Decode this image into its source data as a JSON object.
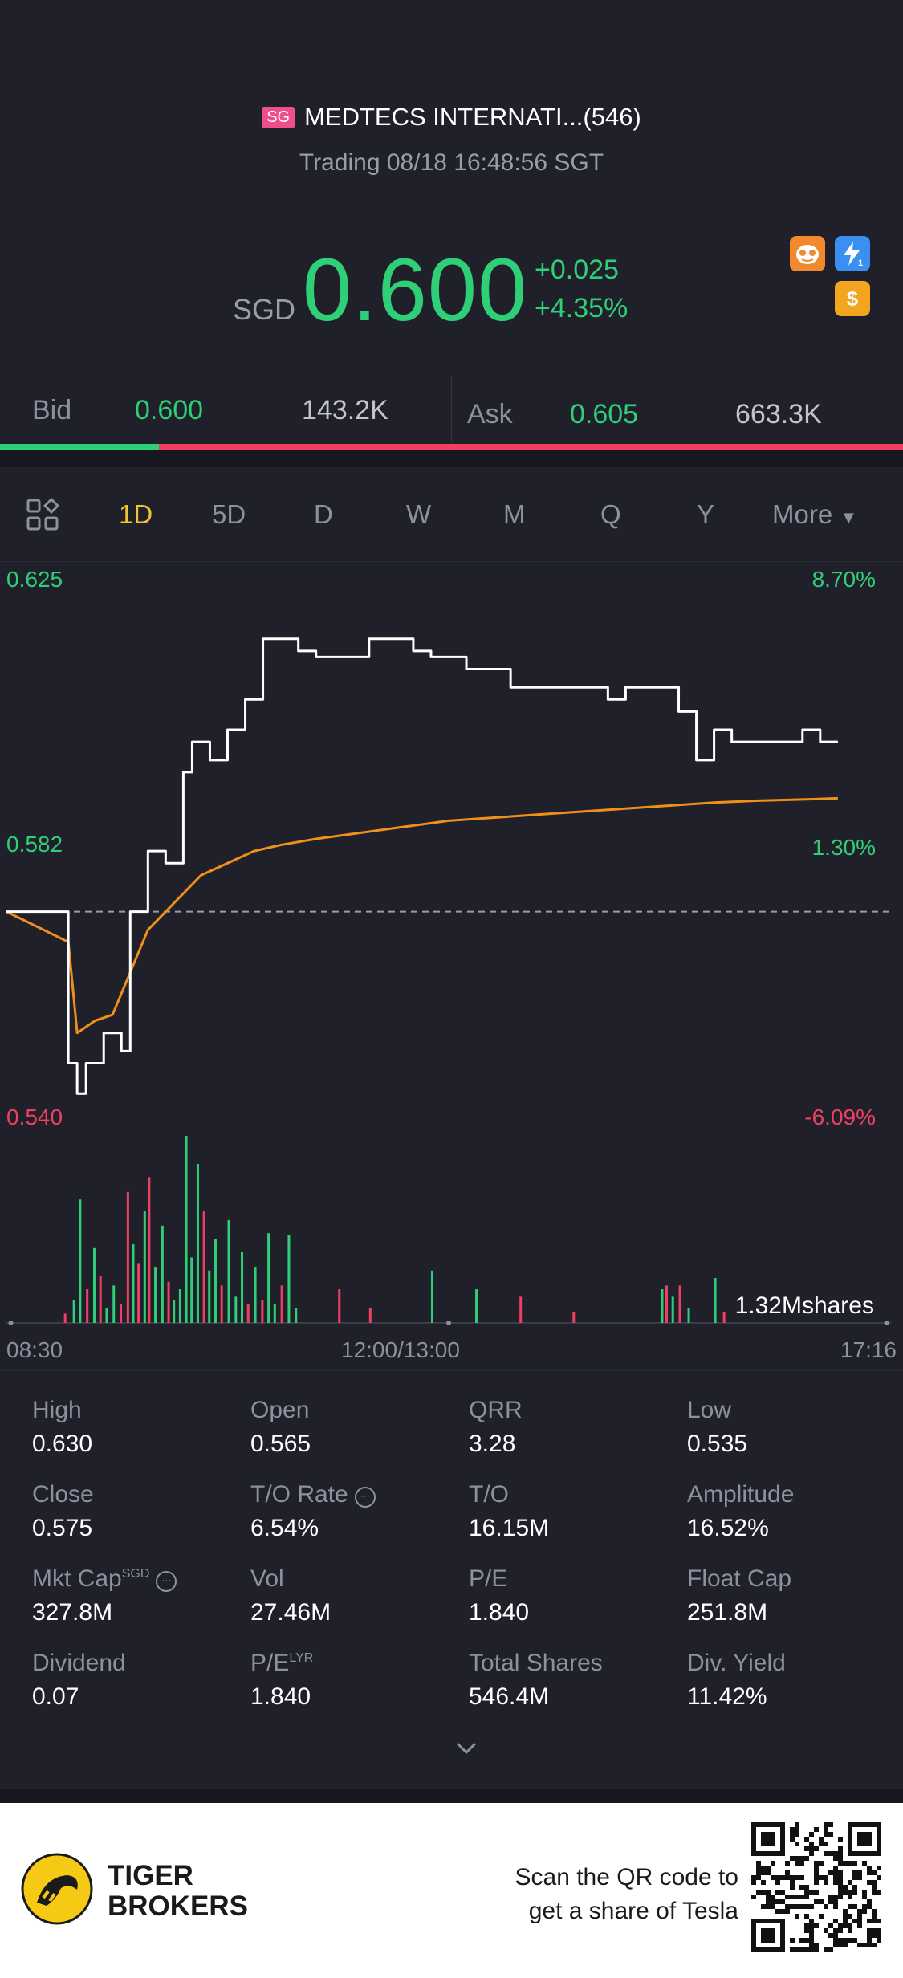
{
  "header": {
    "market_badge": "SG",
    "stock_name": "MEDTECS INTERNATI...(546)",
    "status": "Trading 08/18 16:48:56 SGT",
    "currency": "SGD",
    "price": "0.600",
    "change_abs": "+0.025",
    "change_pct": "+4.35%",
    "icons": [
      "mascot-icon",
      "lightning-1-icon",
      "dollar-icon"
    ]
  },
  "quote": {
    "bid_label": "Bid",
    "bid_price": "0.600",
    "bid_size": "143.2K",
    "ask_label": "Ask",
    "ask_price": "0.605",
    "ask_size": "663.3K",
    "bid_ratio": 0.176
  },
  "tabs": {
    "items": [
      "1D",
      "5D",
      "D",
      "W",
      "M",
      "Q",
      "Y",
      "More"
    ],
    "active": "1D"
  },
  "chart_labels": {
    "left_top": "0.625",
    "left_mid": "0.582",
    "left_bottom": "0.540",
    "right_top": "8.70%",
    "right_mid": "1.30%",
    "right_bottom": "-6.09%",
    "volume_label": "1.32Mshares",
    "x_start": "08:30",
    "x_mid": "12:00/13:00",
    "x_end": "17:16"
  },
  "chart_data": {
    "type": "line",
    "title": "",
    "xlabel": "",
    "ylabel": "",
    "x_ticks": [
      "08:30",
      "12:00/13:00",
      "17:16"
    ],
    "ylim": [
      0.54,
      0.625
    ],
    "reference_close": 0.575,
    "series": [
      {
        "kind": "price",
        "color": "#ffffff",
        "x": [
          0,
          0.06,
          0.07,
          0.08,
          0.09,
          0.11,
          0.13,
          0.14,
          0.16,
          0.18,
          0.2,
          0.21,
          0.23,
          0.25,
          0.27,
          0.29,
          0.31,
          0.33,
          0.35,
          0.38,
          0.41,
          0.44,
          0.46,
          0.48,
          0.5,
          0.52,
          0.55,
          0.57,
          0.6,
          0.62,
          0.64,
          0.66,
          0.68,
          0.7,
          0.74,
          0.76,
          0.78,
          0.8,
          0.82,
          0.86,
          0.9,
          0.92,
          0.94
        ],
        "values": [
          0.575,
          0.575,
          0.55,
          0.545,
          0.55,
          0.555,
          0.552,
          0.575,
          0.585,
          0.583,
          0.598,
          0.603,
          0.6,
          0.605,
          0.61,
          0.62,
          0.62,
          0.618,
          0.617,
          0.617,
          0.62,
          0.62,
          0.618,
          0.617,
          0.617,
          0.615,
          0.615,
          0.612,
          0.612,
          0.612,
          0.612,
          0.612,
          0.61,
          0.612,
          0.612,
          0.608,
          0.6,
          0.605,
          0.603,
          0.603,
          0.605,
          0.603,
          0.603
        ]
      },
      {
        "kind": "average",
        "color": "#f0901c",
        "x": [
          0,
          0.07,
          0.08,
          0.1,
          0.12,
          0.14,
          0.16,
          0.18,
          0.2,
          0.22,
          0.25,
          0.28,
          0.31,
          0.35,
          0.4,
          0.45,
          0.5,
          0.55,
          0.6,
          0.65,
          0.7,
          0.75,
          0.8,
          0.85,
          0.9,
          0.94
        ],
        "values": [
          0.575,
          0.57,
          0.555,
          0.557,
          0.558,
          0.565,
          0.572,
          0.575,
          0.578,
          0.581,
          0.583,
          0.585,
          0.586,
          0.587,
          0.588,
          0.589,
          0.59,
          0.5905,
          0.591,
          0.5915,
          0.592,
          0.5925,
          0.593,
          0.5933,
          0.5935,
          0.5937
        ]
      }
    ],
    "volume": {
      "unit": "shares",
      "max": "1.32M",
      "bars": [
        [
          0.065,
          0.05,
          "red"
        ],
        [
          0.075,
          0.12,
          "green"
        ],
        [
          0.082,
          0.66,
          "green"
        ],
        [
          0.09,
          0.18,
          "red"
        ],
        [
          0.098,
          0.4,
          "green"
        ],
        [
          0.105,
          0.25,
          "red"
        ],
        [
          0.112,
          0.08,
          "green"
        ],
        [
          0.12,
          0.2,
          "green"
        ],
        [
          0.128,
          0.1,
          "red"
        ],
        [
          0.136,
          0.7,
          "red"
        ],
        [
          0.142,
          0.42,
          "green"
        ],
        [
          0.148,
          0.32,
          "red"
        ],
        [
          0.155,
          0.6,
          "green"
        ],
        [
          0.16,
          0.78,
          "red"
        ],
        [
          0.167,
          0.3,
          "green"
        ],
        [
          0.175,
          0.52,
          "green"
        ],
        [
          0.182,
          0.22,
          "red"
        ],
        [
          0.188,
          0.12,
          "green"
        ],
        [
          0.195,
          0.18,
          "green"
        ],
        [
          0.202,
          1.0,
          "green"
        ],
        [
          0.208,
          0.35,
          "green"
        ],
        [
          0.215,
          0.85,
          "green"
        ],
        [
          0.222,
          0.6,
          "red"
        ],
        [
          0.228,
          0.28,
          "green"
        ],
        [
          0.235,
          0.45,
          "green"
        ],
        [
          0.242,
          0.2,
          "red"
        ],
        [
          0.25,
          0.55,
          "green"
        ],
        [
          0.258,
          0.14,
          "green"
        ],
        [
          0.265,
          0.38,
          "green"
        ],
        [
          0.272,
          0.1,
          "red"
        ],
        [
          0.28,
          0.3,
          "green"
        ],
        [
          0.288,
          0.12,
          "red"
        ],
        [
          0.295,
          0.48,
          "green"
        ],
        [
          0.302,
          0.1,
          "green"
        ],
        [
          0.31,
          0.2,
          "red"
        ],
        [
          0.318,
          0.47,
          "green"
        ],
        [
          0.326,
          0.08,
          "green"
        ],
        [
          0.375,
          0.18,
          "red"
        ],
        [
          0.41,
          0.08,
          "red"
        ],
        [
          0.48,
          0.28,
          "green"
        ],
        [
          0.53,
          0.18,
          "green"
        ],
        [
          0.58,
          0.14,
          "red"
        ],
        [
          0.64,
          0.06,
          "red"
        ],
        [
          0.74,
          0.18,
          "green"
        ],
        [
          0.745,
          0.2,
          "red"
        ],
        [
          0.752,
          0.14,
          "green"
        ],
        [
          0.76,
          0.2,
          "red"
        ],
        [
          0.77,
          0.08,
          "green"
        ],
        [
          0.8,
          0.24,
          "green"
        ],
        [
          0.81,
          0.06,
          "red"
        ]
      ]
    }
  },
  "stats": [
    {
      "label": "High",
      "value": "0.630"
    },
    {
      "label": "Open",
      "value": "0.565"
    },
    {
      "label": "QRR",
      "value": "3.28"
    },
    {
      "label": "Low",
      "value": "0.535"
    },
    {
      "label": "Close",
      "value": "0.575"
    },
    {
      "label": "T/O Rate",
      "value": "6.54%"
    },
    {
      "label": "T/O",
      "value": "16.15M"
    },
    {
      "label": "Amplitude",
      "value": "16.52%"
    },
    {
      "label": "Mkt Cap",
      "value": "327.8M",
      "sup": "SGD"
    },
    {
      "label": "Vol",
      "value": "27.46M"
    },
    {
      "label": "P/E",
      "value": "1.840"
    },
    {
      "label": "Float Cap",
      "value": "251.8M"
    },
    {
      "label": "Dividend",
      "value": "0.07"
    },
    {
      "label": "P/E",
      "value": "1.840",
      "sup": "LYR"
    },
    {
      "label": "Total Shares",
      "value": "546.4M"
    },
    {
      "label": "Div. Yield",
      "value": "11.42%"
    }
  ],
  "banner": {
    "brand_line1": "TIGER",
    "brand_line2": "BROKERS",
    "cta_line1": "Scan the QR code to",
    "cta_line2": "get a share of Tesla"
  },
  "colors": {
    "background": "#1f2029",
    "up": "#2fcf78",
    "down": "#ef4061",
    "active_tab": "#f0c330",
    "avg_line": "#f0901c"
  }
}
